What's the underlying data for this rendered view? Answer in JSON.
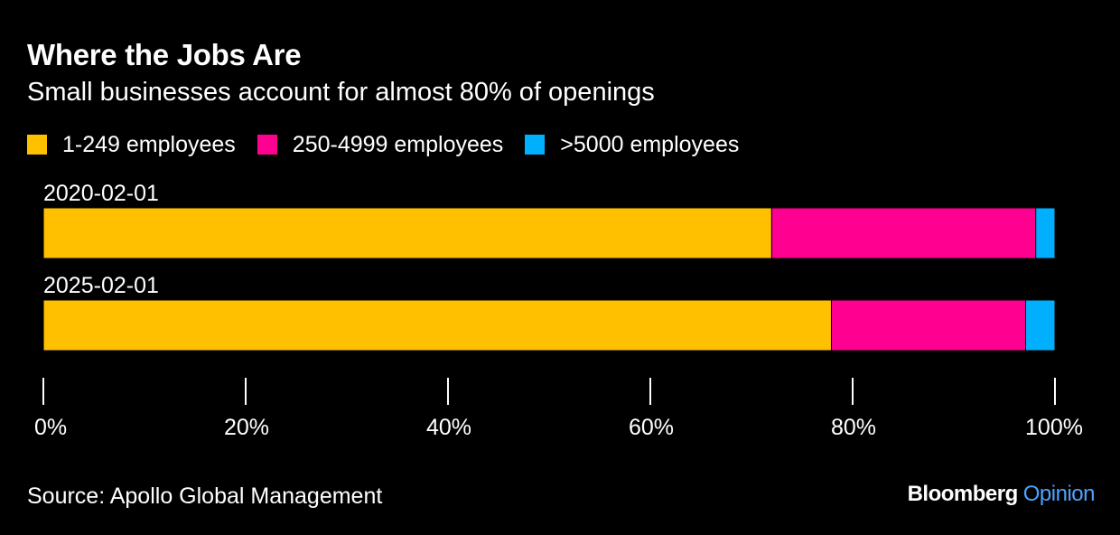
{
  "chart_data": {
    "type": "bar",
    "orientation": "horizontal",
    "stacked": true,
    "title": "Where the Jobs Are",
    "subtitle": "Small businesses account for almost 80% of openings",
    "categories": [
      "2020-02-01",
      "2025-02-01"
    ],
    "series": [
      {
        "name": "1-249 employees",
        "color": "#ffc000",
        "values": [
          72.0,
          77.9
        ]
      },
      {
        "name": "250-4999 employees",
        "color": "#ff0090",
        "values": [
          26.1,
          19.2
        ]
      },
      {
        "name": ">5000 employees",
        "color": "#00b0ff",
        "values": [
          1.9,
          2.9
        ]
      }
    ],
    "xlim": [
      0,
      100
    ],
    "xticks": [
      0,
      20,
      40,
      60,
      80,
      100
    ],
    "xtick_labels": [
      "0%",
      "20%",
      "40%",
      "60%",
      "80%",
      "100%"
    ],
    "grid": false,
    "legend_position": "top-left"
  },
  "source": "Source: Apollo Global Management",
  "brand": {
    "name": "Bloomberg",
    "section": "Opinion"
  }
}
